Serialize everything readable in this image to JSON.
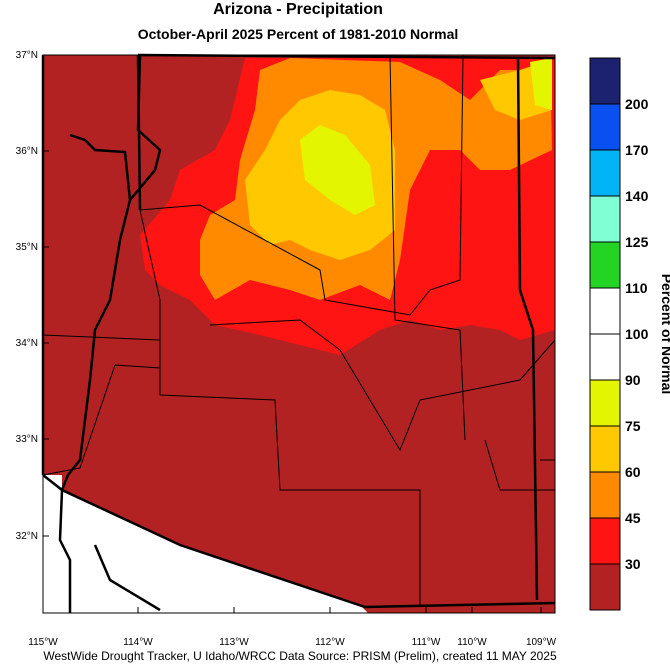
{
  "header": {
    "title": "Arizona - Precipitation",
    "subtitle": "October-April 2025  Percent of 1981-2010 Normal"
  },
  "map": {
    "lat_labels": [
      "37°N",
      "36°N",
      "35°N",
      "34°N",
      "33°N",
      "32°N"
    ],
    "lon_labels": [
      "115°W",
      "114°W",
      "113°W",
      "112°W",
      "111°W",
      "110°W",
      "109°W"
    ]
  },
  "colorbar": {
    "title": "Percent of Normal",
    "labels": [
      "200",
      "170",
      "140",
      "125",
      "110",
      "100",
      "90",
      "75",
      "60",
      "45",
      "30"
    ],
    "colors": [
      "#1c2170",
      "#0a4ff0",
      "#00b4f5",
      "#80ffd4",
      "#24d424",
      "#ffffff",
      "#ffffff",
      "#e4f500",
      "#ffc800",
      "#ff8a00",
      "#ff1414",
      "#b22222"
    ]
  },
  "footer": "WestWide Drought Tracker, U Idaho/WRCC Data Source: PRISM (Prelim), created 11 MAY 2025"
}
